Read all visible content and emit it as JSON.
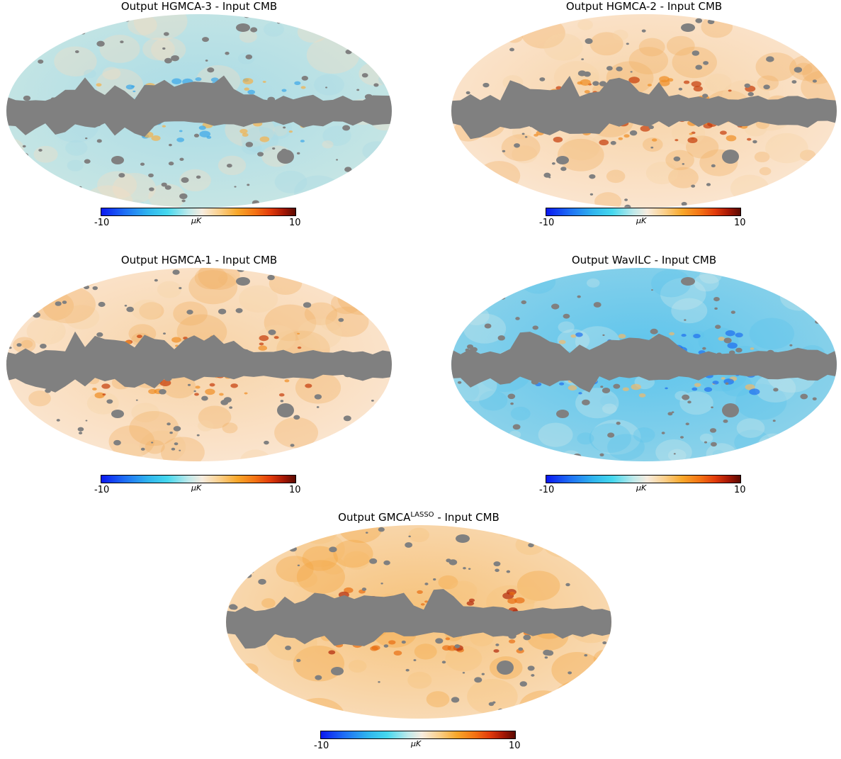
{
  "figure": {
    "panels": [
      {
        "id": "hgmca3",
        "title_main": "Output HGMCA-3 - Input CMB",
        "map_tone": "cyan-dominant"
      },
      {
        "id": "hgmca2",
        "title_main": "Output HGMCA-2 - Input CMB",
        "map_tone": "orange-light"
      },
      {
        "id": "hgmca1",
        "title_main": "Output HGMCA-1 - Input CMB",
        "map_tone": "orange-light"
      },
      {
        "id": "wavilc",
        "title_main": "Output WavILC - Input CMB",
        "map_tone": "cyan-strong"
      },
      {
        "id": "gmcalasso",
        "title_prefix": "Output GMCA",
        "title_sup": "LASSO",
        "title_suffix": " - Input CMB",
        "map_tone": "orange-strong"
      }
    ],
    "colorbar": {
      "min_label": "-10",
      "max_label": "10",
      "unit": "μK",
      "colors": [
        "#0a18f0",
        "#2fb4ee",
        "#f7ecdf",
        "#f8a72a",
        "#e23b0b",
        "#5a0a02"
      ]
    },
    "mask_color": "#808080"
  }
}
